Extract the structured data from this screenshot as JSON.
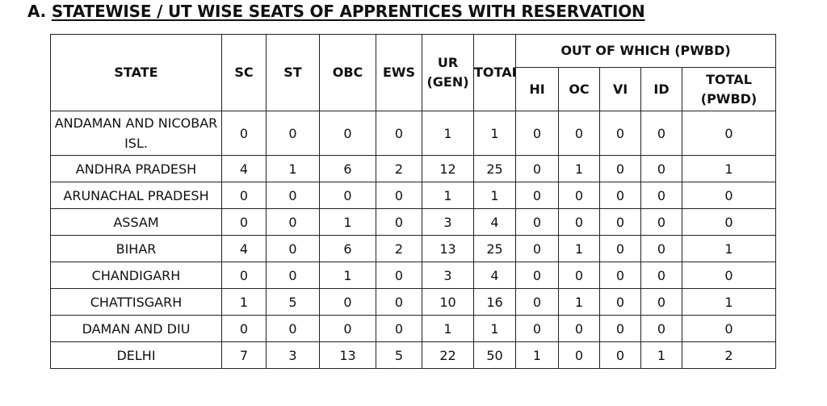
{
  "heading": {
    "prefix": "A.",
    "title": "STATEWISE / UT WISE SEATS OF APPRENTICES WITH RESERVATION"
  },
  "table": {
    "headers": {
      "state": "STATE",
      "sc": "SC",
      "st": "ST",
      "obc": "OBC",
      "ews": "EWS",
      "ur_line1": "UR",
      "ur_line2": "(GEN)",
      "total": "TOTAL",
      "pwbd_group": "OUT OF WHICH (PWBD)",
      "hi": "HI",
      "oc": "OC",
      "vi": "VI",
      "id": "ID",
      "total_pwbd_line1": "TOTAL",
      "total_pwbd_line2": "(PWBD)"
    },
    "rows": [
      {
        "state": "ANDAMAN AND NICOBAR ISL.",
        "sc": "0",
        "st": "0",
        "obc": "0",
        "ews": "0",
        "ur": "1",
        "total": "1",
        "hi": "0",
        "oc": "0",
        "vi": "0",
        "id": "0",
        "total_pwbd": "0"
      },
      {
        "state": "ANDHRA PRADESH",
        "sc": "4",
        "st": "1",
        "obc": "6",
        "ews": "2",
        "ur": "12",
        "total": "25",
        "hi": "0",
        "oc": "1",
        "vi": "0",
        "id": "0",
        "total_pwbd": "1"
      },
      {
        "state": "ARUNACHAL PRADESH",
        "sc": "0",
        "st": "0",
        "obc": "0",
        "ews": "0",
        "ur": "1",
        "total": "1",
        "hi": "0",
        "oc": "0",
        "vi": "0",
        "id": "0",
        "total_pwbd": "0"
      },
      {
        "state": "ASSAM",
        "sc": "0",
        "st": "0",
        "obc": "1",
        "ews": "0",
        "ur": "3",
        "total": "4",
        "hi": "0",
        "oc": "0",
        "vi": "0",
        "id": "0",
        "total_pwbd": "0"
      },
      {
        "state": "BIHAR",
        "sc": "4",
        "st": "0",
        "obc": "6",
        "ews": "2",
        "ur": "13",
        "total": "25",
        "hi": "0",
        "oc": "1",
        "vi": "0",
        "id": "0",
        "total_pwbd": "1"
      },
      {
        "state": "CHANDIGARH",
        "sc": "0",
        "st": "0",
        "obc": "1",
        "ews": "0",
        "ur": "3",
        "total": "4",
        "hi": "0",
        "oc": "0",
        "vi": "0",
        "id": "0",
        "total_pwbd": "0"
      },
      {
        "state": "CHATTISGARH",
        "sc": "1",
        "st": "5",
        "obc": "0",
        "ews": "0",
        "ur": "10",
        "total": "16",
        "hi": "0",
        "oc": "1",
        "vi": "0",
        "id": "0",
        "total_pwbd": "1"
      },
      {
        "state": "DAMAN AND DIU",
        "sc": "0",
        "st": "0",
        "obc": "0",
        "ews": "0",
        "ur": "1",
        "total": "1",
        "hi": "0",
        "oc": "0",
        "vi": "0",
        "id": "0",
        "total_pwbd": "0"
      },
      {
        "state": "DELHI",
        "sc": "7",
        "st": "3",
        "obc": "13",
        "ews": "5",
        "ur": "22",
        "total": "50",
        "hi": "1",
        "oc": "0",
        "vi": "0",
        "id": "1",
        "total_pwbd": "2"
      }
    ]
  }
}
